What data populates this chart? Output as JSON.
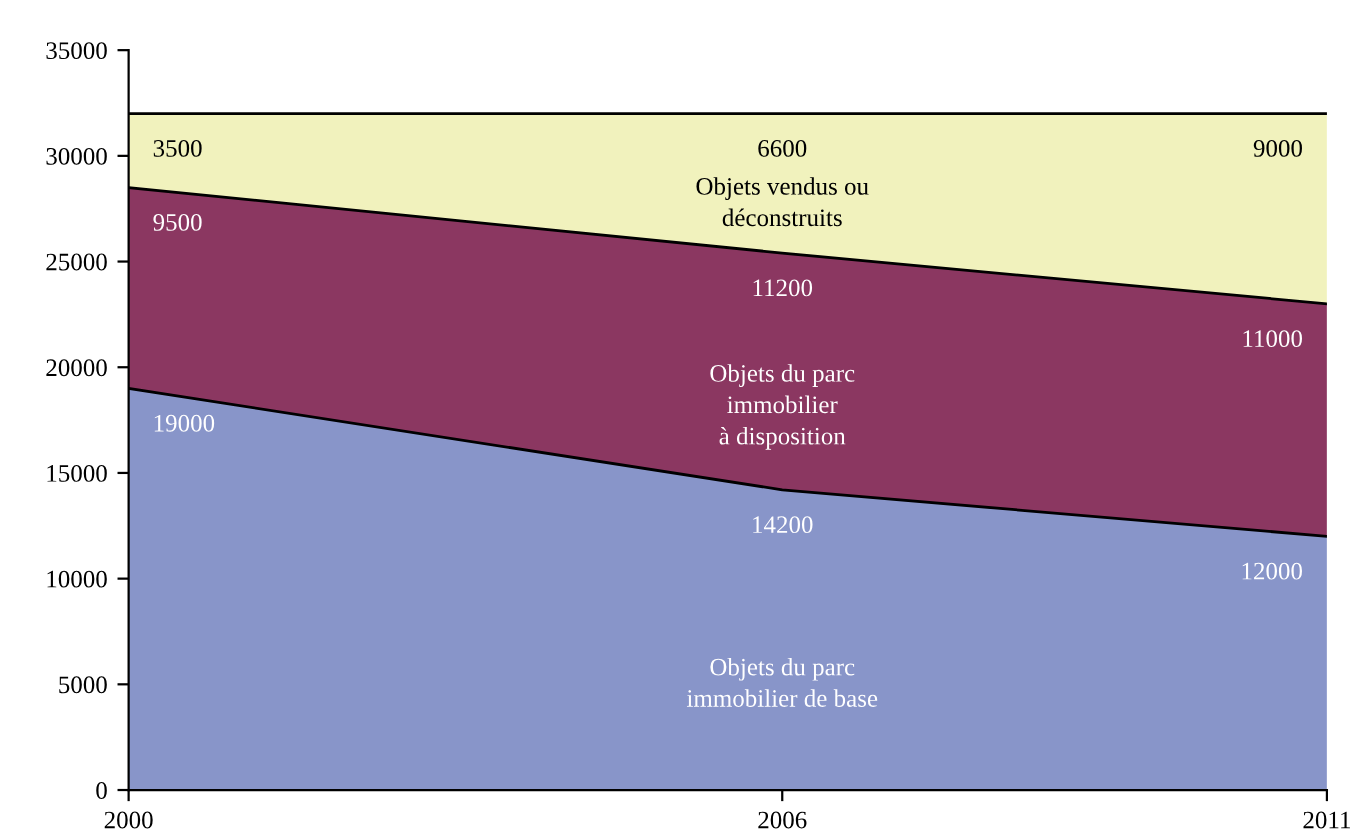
{
  "chart_data": {
    "type": "area",
    "stacked": true,
    "x": [
      2000,
      2006,
      2011
    ],
    "series": [
      {
        "name": "Objets du parc\nimmobilier de base",
        "color": "#8895c9",
        "values": [
          19000,
          14200,
          12000
        ]
      },
      {
        "name": "Objets du parc\nimmobilier\nà disposition",
        "color": "#8b3761",
        "values": [
          9500,
          11200,
          11000
        ]
      },
      {
        "name": "Objets vendus ou\ndéconstruits",
        "color": "#f1f2bd",
        "values": [
          3500,
          6600,
          9000
        ]
      }
    ],
    "xlim": [
      2000,
      2011
    ],
    "xticks": [
      2000,
      2006,
      2011
    ],
    "ylim": [
      0,
      35000
    ],
    "yticks": [
      0,
      5000,
      10000,
      15000,
      20000,
      25000,
      30000,
      35000
    ],
    "data_labels": true,
    "grid": false,
    "legend": false
  }
}
